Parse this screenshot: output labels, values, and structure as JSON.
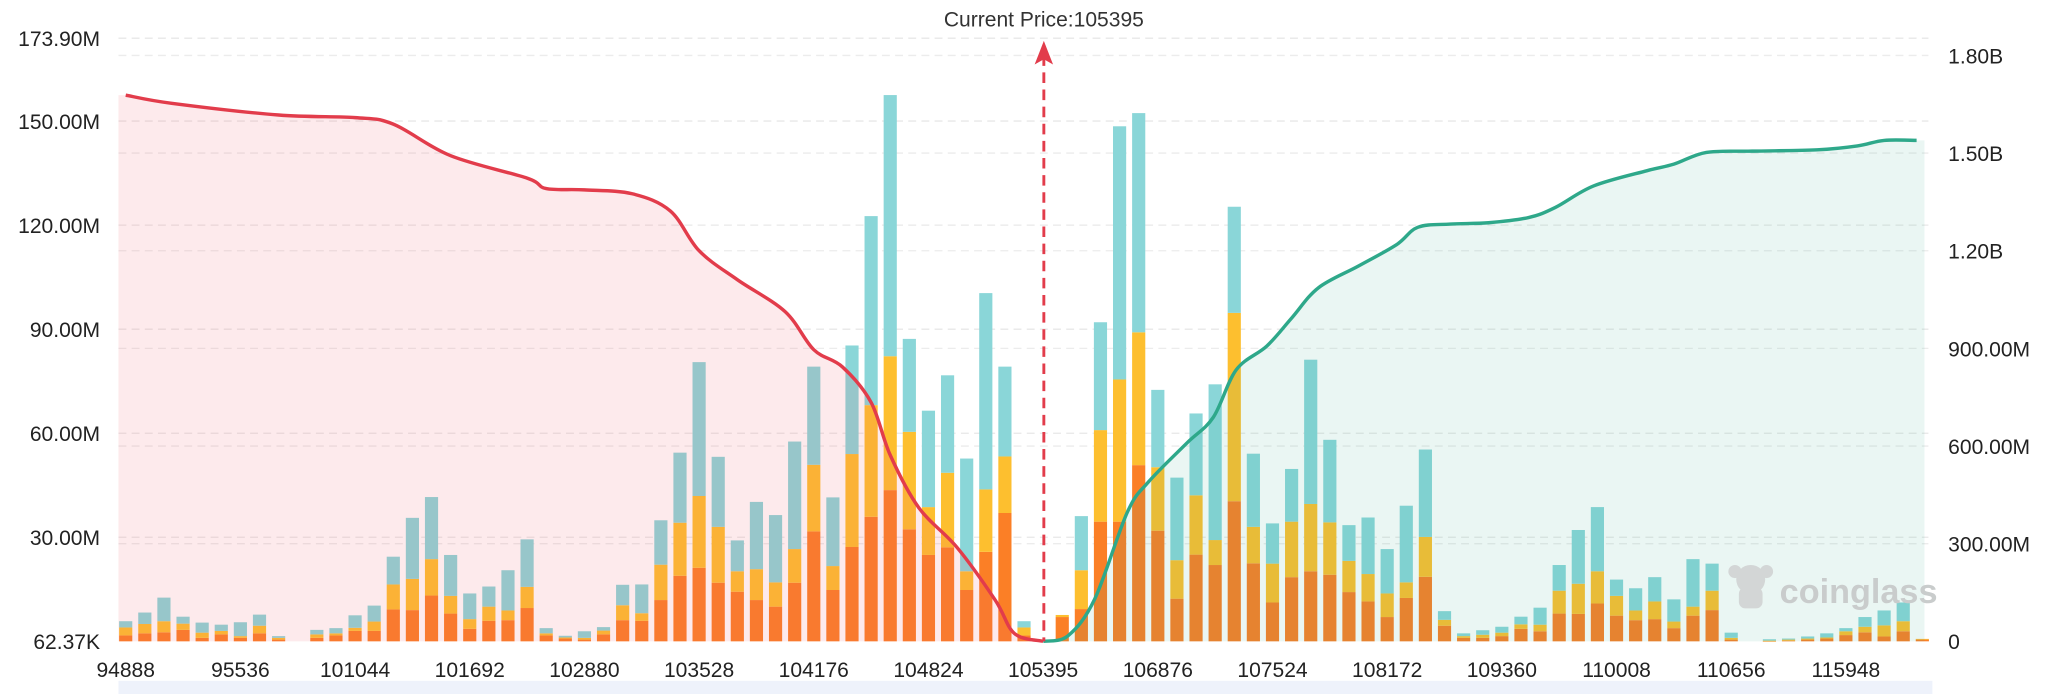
{
  "chart_data": {
    "type": "bar",
    "title": "",
    "xlabel": "",
    "ylabel": "",
    "current_price_label": "Current Price:105395",
    "current_price": 105395,
    "current_price_index": 48,
    "watermark": "coinglass",
    "colors": {
      "long_cumulative": "#e23c4b",
      "long_fill": "#fde5e8",
      "short_cumulative": "#2ea88a",
      "short_fill": "#e6f4f1",
      "price_line": "#e23c4b"
    },
    "left_axis": {
      "ticks": [
        "62.37K",
        "30.00M",
        "60.00M",
        "90.00M",
        "120.00M",
        "150.00M",
        "173.90M"
      ],
      "tick_values": [
        0.06237,
        30,
        60,
        90,
        120,
        150,
        173.9
      ],
      "ylim": [
        0,
        173.9
      ],
      "unit": "M"
    },
    "right_axis": {
      "ticks": [
        "0",
        "300.00M",
        "600.00M",
        "900.00M",
        "1.20B",
        "1.50B",
        "1.80B"
      ],
      "tick_values": [
        0,
        300,
        600,
        900,
        1200,
        1500,
        1800
      ],
      "ylim": [
        0,
        1853
      ],
      "unit": "M"
    },
    "x_tick_labels": [
      "94888",
      "95536",
      "101044",
      "101692",
      "102880",
      "103528",
      "104176",
      "104824",
      "105395",
      "106876",
      "107524",
      "108172",
      "109360",
      "110008",
      "110656",
      "115948"
    ],
    "x_tick_every": 6,
    "bar_count": 95,
    "series": [
      {
        "color": "#fb7f26",
        "values": [
          1.7,
          2.3,
          2.6,
          3.3,
          1.0,
          2.0,
          1.0,
          2.3,
          0.5,
          0,
          1,
          1.7,
          3,
          3,
          9.2,
          9,
          13.2,
          8,
          3.6,
          5.9,
          6.1,
          9.6,
          1.7,
          0.8,
          0.5,
          2,
          6.1,
          5.9,
          11.9,
          18.9,
          21.2,
          16.9,
          14.3,
          11.9,
          10,
          16.9,
          31.7,
          14.8,
          27.2,
          35.9,
          43.6,
          32.3,
          24.9,
          27.1,
          14.8,
          25.8,
          37,
          1.7,
          0,
          7,
          9.3,
          34.5,
          34.5,
          50.8,
          31.9,
          12.3,
          25,
          22,
          40.4,
          22.5,
          11.2,
          18.5,
          20.2,
          19.2,
          14.2,
          11.5,
          7,
          12.5,
          18.6,
          4.5,
          1,
          1,
          1.5,
          3.6,
          2.9,
          8,
          7.9,
          10.9,
          7.4,
          6.1,
          6.4,
          3.8,
          7.4,
          9,
          0.5,
          0,
          0.1,
          0.2,
          0.5,
          0.8,
          1.8,
          2.6,
          1.4,
          2.9,
          0.5
        ]
      },
      {
        "color": "#fdbf2f",
        "values": [
          2.3,
          2.7,
          3.2,
          1.8,
          1.5,
          1.0,
          0.5,
          2.2,
          0.5,
          0,
          1,
          0.6,
          0.9,
          2.7,
          7.2,
          9,
          10.5,
          5.1,
          2.8,
          4.1,
          2.8,
          6.1,
          0.6,
          0.3,
          0.5,
          1.1,
          4.3,
          2.2,
          10.2,
          15.3,
          20.7,
          16.1,
          5.9,
          8.9,
          7,
          9.7,
          19.2,
          6.9,
          26.8,
          32.2,
          38.6,
          28.1,
          13.8,
          21.5,
          5.4,
          18,
          16.3,
          2.3,
          0,
          0.6,
          11.2,
          26.4,
          41,
          38.3,
          18.3,
          11.1,
          17.1,
          7.2,
          54.3,
          10.5,
          11.2,
          16,
          19.4,
          15.1,
          9,
          7.9,
          6.8,
          4.5,
          11.5,
          1.7,
          0.5,
          0.9,
          1,
          1.3,
          1.9,
          6.6,
          8.7,
          9.3,
          5.7,
          2.8,
          5.1,
          1.9,
          2.6,
          5.6,
          0.5,
          0,
          0.1,
          0.3,
          0.3,
          0.3,
          1.1,
          1.6,
          3.2,
          2.9,
          0.2
        ]
      },
      {
        "color": "#8ad6d8",
        "values": [
          1.8,
          3.3,
          6.8,
          2.0,
          2.9,
          1.8,
          4,
          3.2,
          0.5,
          0,
          1.3,
          1.5,
          3.6,
          4.6,
          8,
          17.6,
          17.9,
          11.8,
          7.4,
          5.8,
          11.6,
          13.7,
          1.5,
          0.5,
          1.9,
          1,
          5.9,
          8.3,
          12.8,
          20.2,
          38.6,
          20.2,
          8.9,
          19.4,
          19.4,
          31,
          28.3,
          19.8,
          31.3,
          54.5,
          75.3,
          26.8,
          27.8,
          28.1,
          32.5,
          56.6,
          25.9,
          1.8,
          0,
          0,
          15.6,
          31.1,
          73,
          63.2,
          22.3,
          23.8,
          23.6,
          44.9,
          30.6,
          21.1,
          11.6,
          15.2,
          41.6,
          23.8,
          10.3,
          16.3,
          12.8,
          22.1,
          25.2,
          2.5,
          0.8,
          1.3,
          1.7,
          2.2,
          4.9,
          7.4,
          15.5,
          18.5,
          4.7,
          6.4,
          7,
          6.4,
          13.7,
          7.8,
          1.5,
          0,
          0.4,
          0.3,
          0.6,
          1.2,
          0.9,
          2.8,
          4.3,
          5.4,
          0
        ]
      }
    ],
    "long_cumulative_line": [
      [
        0,
        1678
      ],
      [
        2.4,
        1653
      ],
      [
        8,
        1617
      ],
      [
        12,
        1609
      ],
      [
        14,
        1589
      ],
      [
        17,
        1492
      ],
      [
        21,
        1423
      ],
      [
        22,
        1391
      ],
      [
        24,
        1387
      ],
      [
        26.5,
        1375
      ],
      [
        28.5,
        1322
      ],
      [
        30,
        1200
      ],
      [
        32,
        1111
      ],
      [
        34.5,
        1013
      ],
      [
        36,
        896
      ],
      [
        37.5,
        843
      ],
      [
        39,
        734
      ],
      [
        40,
        572
      ],
      [
        41.5,
        410
      ],
      [
        43.5,
        288
      ],
      [
        45.5,
        126
      ],
      [
        46.5,
        24
      ],
      [
        48,
        0
      ]
    ],
    "short_cumulative_line": [
      [
        48,
        0
      ],
      [
        49.3,
        17
      ],
      [
        50.7,
        130
      ],
      [
        52.4,
        396
      ],
      [
        53.5,
        489
      ],
      [
        55.5,
        608
      ],
      [
        56.9,
        688
      ],
      [
        58.1,
        834
      ],
      [
        59.7,
        907
      ],
      [
        61,
        993
      ],
      [
        62.4,
        1086
      ],
      [
        64.5,
        1153
      ],
      [
        66.5,
        1219
      ],
      [
        67.6,
        1272
      ],
      [
        69.3,
        1282
      ],
      [
        71.3,
        1286
      ],
      [
        73.4,
        1302
      ],
      [
        74.8,
        1333
      ],
      [
        76.8,
        1399
      ],
      [
        79.6,
        1446
      ],
      [
        81,
        1466
      ],
      [
        82.7,
        1502
      ],
      [
        85.1,
        1506
      ],
      [
        88.5,
        1510
      ],
      [
        90.6,
        1522
      ],
      [
        92,
        1539
      ],
      [
        93.7,
        1539
      ]
    ]
  }
}
